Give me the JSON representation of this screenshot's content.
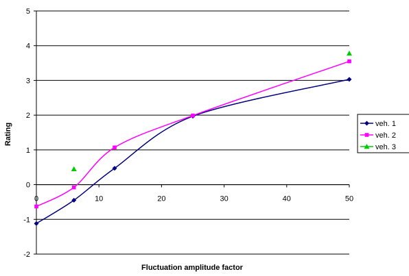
{
  "chart_data": {
    "type": "line",
    "title": "",
    "xlabel": "Fluctuation amplitude factor",
    "ylabel": "Rating",
    "xlim": [
      0,
      50
    ],
    "ylim": [
      -2,
      5
    ],
    "x_ticks": [
      0,
      10,
      20,
      30,
      40,
      50
    ],
    "y_ticks": [
      -2,
      -1,
      0,
      1,
      2,
      3,
      4,
      5
    ],
    "grid": "horizontal major gridlines",
    "legend_position": "right",
    "series": [
      {
        "name": "veh. 1",
        "color": "#000080",
        "marker": "diamond",
        "points": [
          [
            0,
            -1.12
          ],
          [
            6,
            -0.45
          ],
          [
            12.5,
            0.47
          ],
          [
            25,
            1.97
          ],
          [
            50,
            3.03
          ]
        ]
      },
      {
        "name": "veh. 2",
        "color": "#ff00ff",
        "marker": "square",
        "points": [
          [
            0,
            -0.63
          ],
          [
            6,
            -0.08
          ],
          [
            12.5,
            1.07
          ],
          [
            25,
            1.99
          ],
          [
            50,
            3.55
          ]
        ]
      },
      {
        "name": "veh. 3",
        "color": "#00cc00",
        "marker": "triangle",
        "points": [
          [
            6,
            0.45
          ],
          [
            50,
            3.78
          ]
        ]
      }
    ]
  }
}
